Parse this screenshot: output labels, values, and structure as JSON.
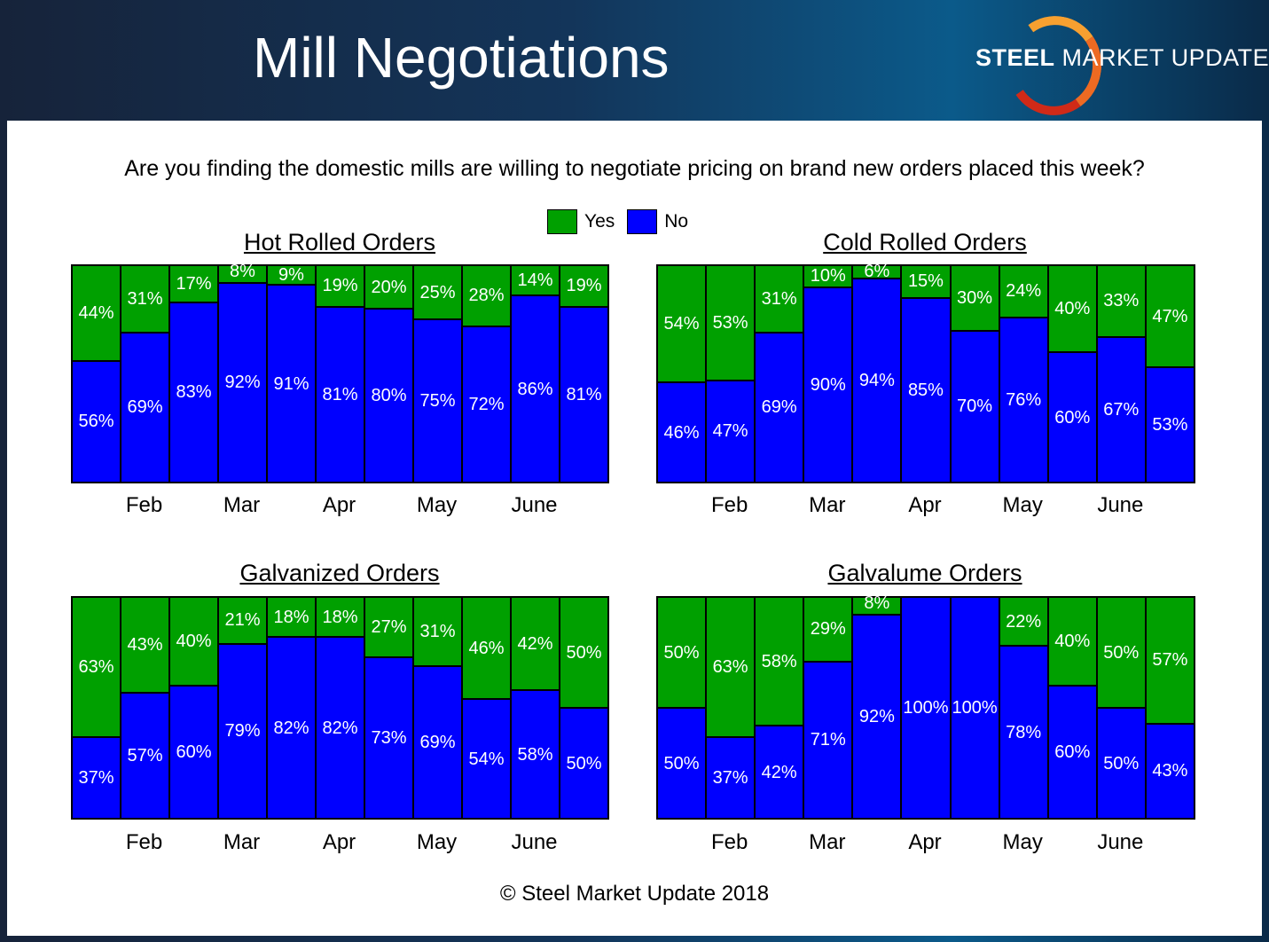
{
  "header": {
    "title": "Mill Negotiations",
    "logo_text_bold": "STEEL",
    "logo_text_mid": "MARKET",
    "logo_text_light": "UPDATE"
  },
  "question": "Are you finding the domestic mills are willing to negotiate pricing on brand new orders placed this week?",
  "legend": {
    "yes": "Yes",
    "no": "No"
  },
  "colors": {
    "yes": "#00a000",
    "no": "#0000ff"
  },
  "footer": "© Steel Market Update 2018",
  "chart_data": [
    {
      "type": "bar",
      "stacked": true,
      "title": "Hot Rolled Orders",
      "month_labels": [
        "",
        "Feb",
        "",
        "Mar",
        "",
        "Apr",
        "",
        "May",
        "",
        "June",
        ""
      ],
      "ylim": [
        0,
        100
      ],
      "series": [
        {
          "name": "Yes",
          "values": [
            44,
            31,
            17,
            8,
            9,
            19,
            20,
            25,
            28,
            14,
            19
          ]
        },
        {
          "name": "No",
          "values": [
            56,
            69,
            83,
            92,
            91,
            81,
            80,
            75,
            72,
            86,
            81
          ]
        }
      ]
    },
    {
      "type": "bar",
      "stacked": true,
      "title": "Cold Rolled Orders",
      "month_labels": [
        "",
        "Feb",
        "",
        "Mar",
        "",
        "Apr",
        "",
        "May",
        "",
        "June",
        ""
      ],
      "ylim": [
        0,
        100
      ],
      "series": [
        {
          "name": "Yes",
          "values": [
            54,
            53,
            31,
            10,
            6,
            15,
            30,
            24,
            40,
            33,
            47
          ]
        },
        {
          "name": "No",
          "values": [
            46,
            47,
            69,
            90,
            94,
            85,
            70,
            76,
            60,
            67,
            53
          ]
        }
      ]
    },
    {
      "type": "bar",
      "stacked": true,
      "title": "Galvanized Orders",
      "month_labels": [
        "",
        "Feb",
        "",
        "Mar",
        "",
        "Apr",
        "",
        "May",
        "",
        "June",
        ""
      ],
      "ylim": [
        0,
        100
      ],
      "series": [
        {
          "name": "Yes",
          "values": [
            63,
            43,
            40,
            21,
            18,
            18,
            27,
            31,
            46,
            42,
            50
          ]
        },
        {
          "name": "No",
          "values": [
            37,
            57,
            60,
            79,
            82,
            82,
            73,
            69,
            54,
            58,
            50
          ]
        }
      ]
    },
    {
      "type": "bar",
      "stacked": true,
      "title": "Galvalume Orders",
      "month_labels": [
        "",
        "Feb",
        "",
        "Mar",
        "",
        "Apr",
        "",
        "May",
        "",
        "June",
        ""
      ],
      "ylim": [
        0,
        100
      ],
      "series": [
        {
          "name": "Yes",
          "values": [
            50,
            63,
            58,
            29,
            8,
            0,
            0,
            22,
            40,
            50,
            57
          ]
        },
        {
          "name": "No",
          "values": [
            50,
            37,
            42,
            71,
            92,
            100,
            100,
            78,
            60,
            50,
            43
          ]
        }
      ]
    }
  ]
}
